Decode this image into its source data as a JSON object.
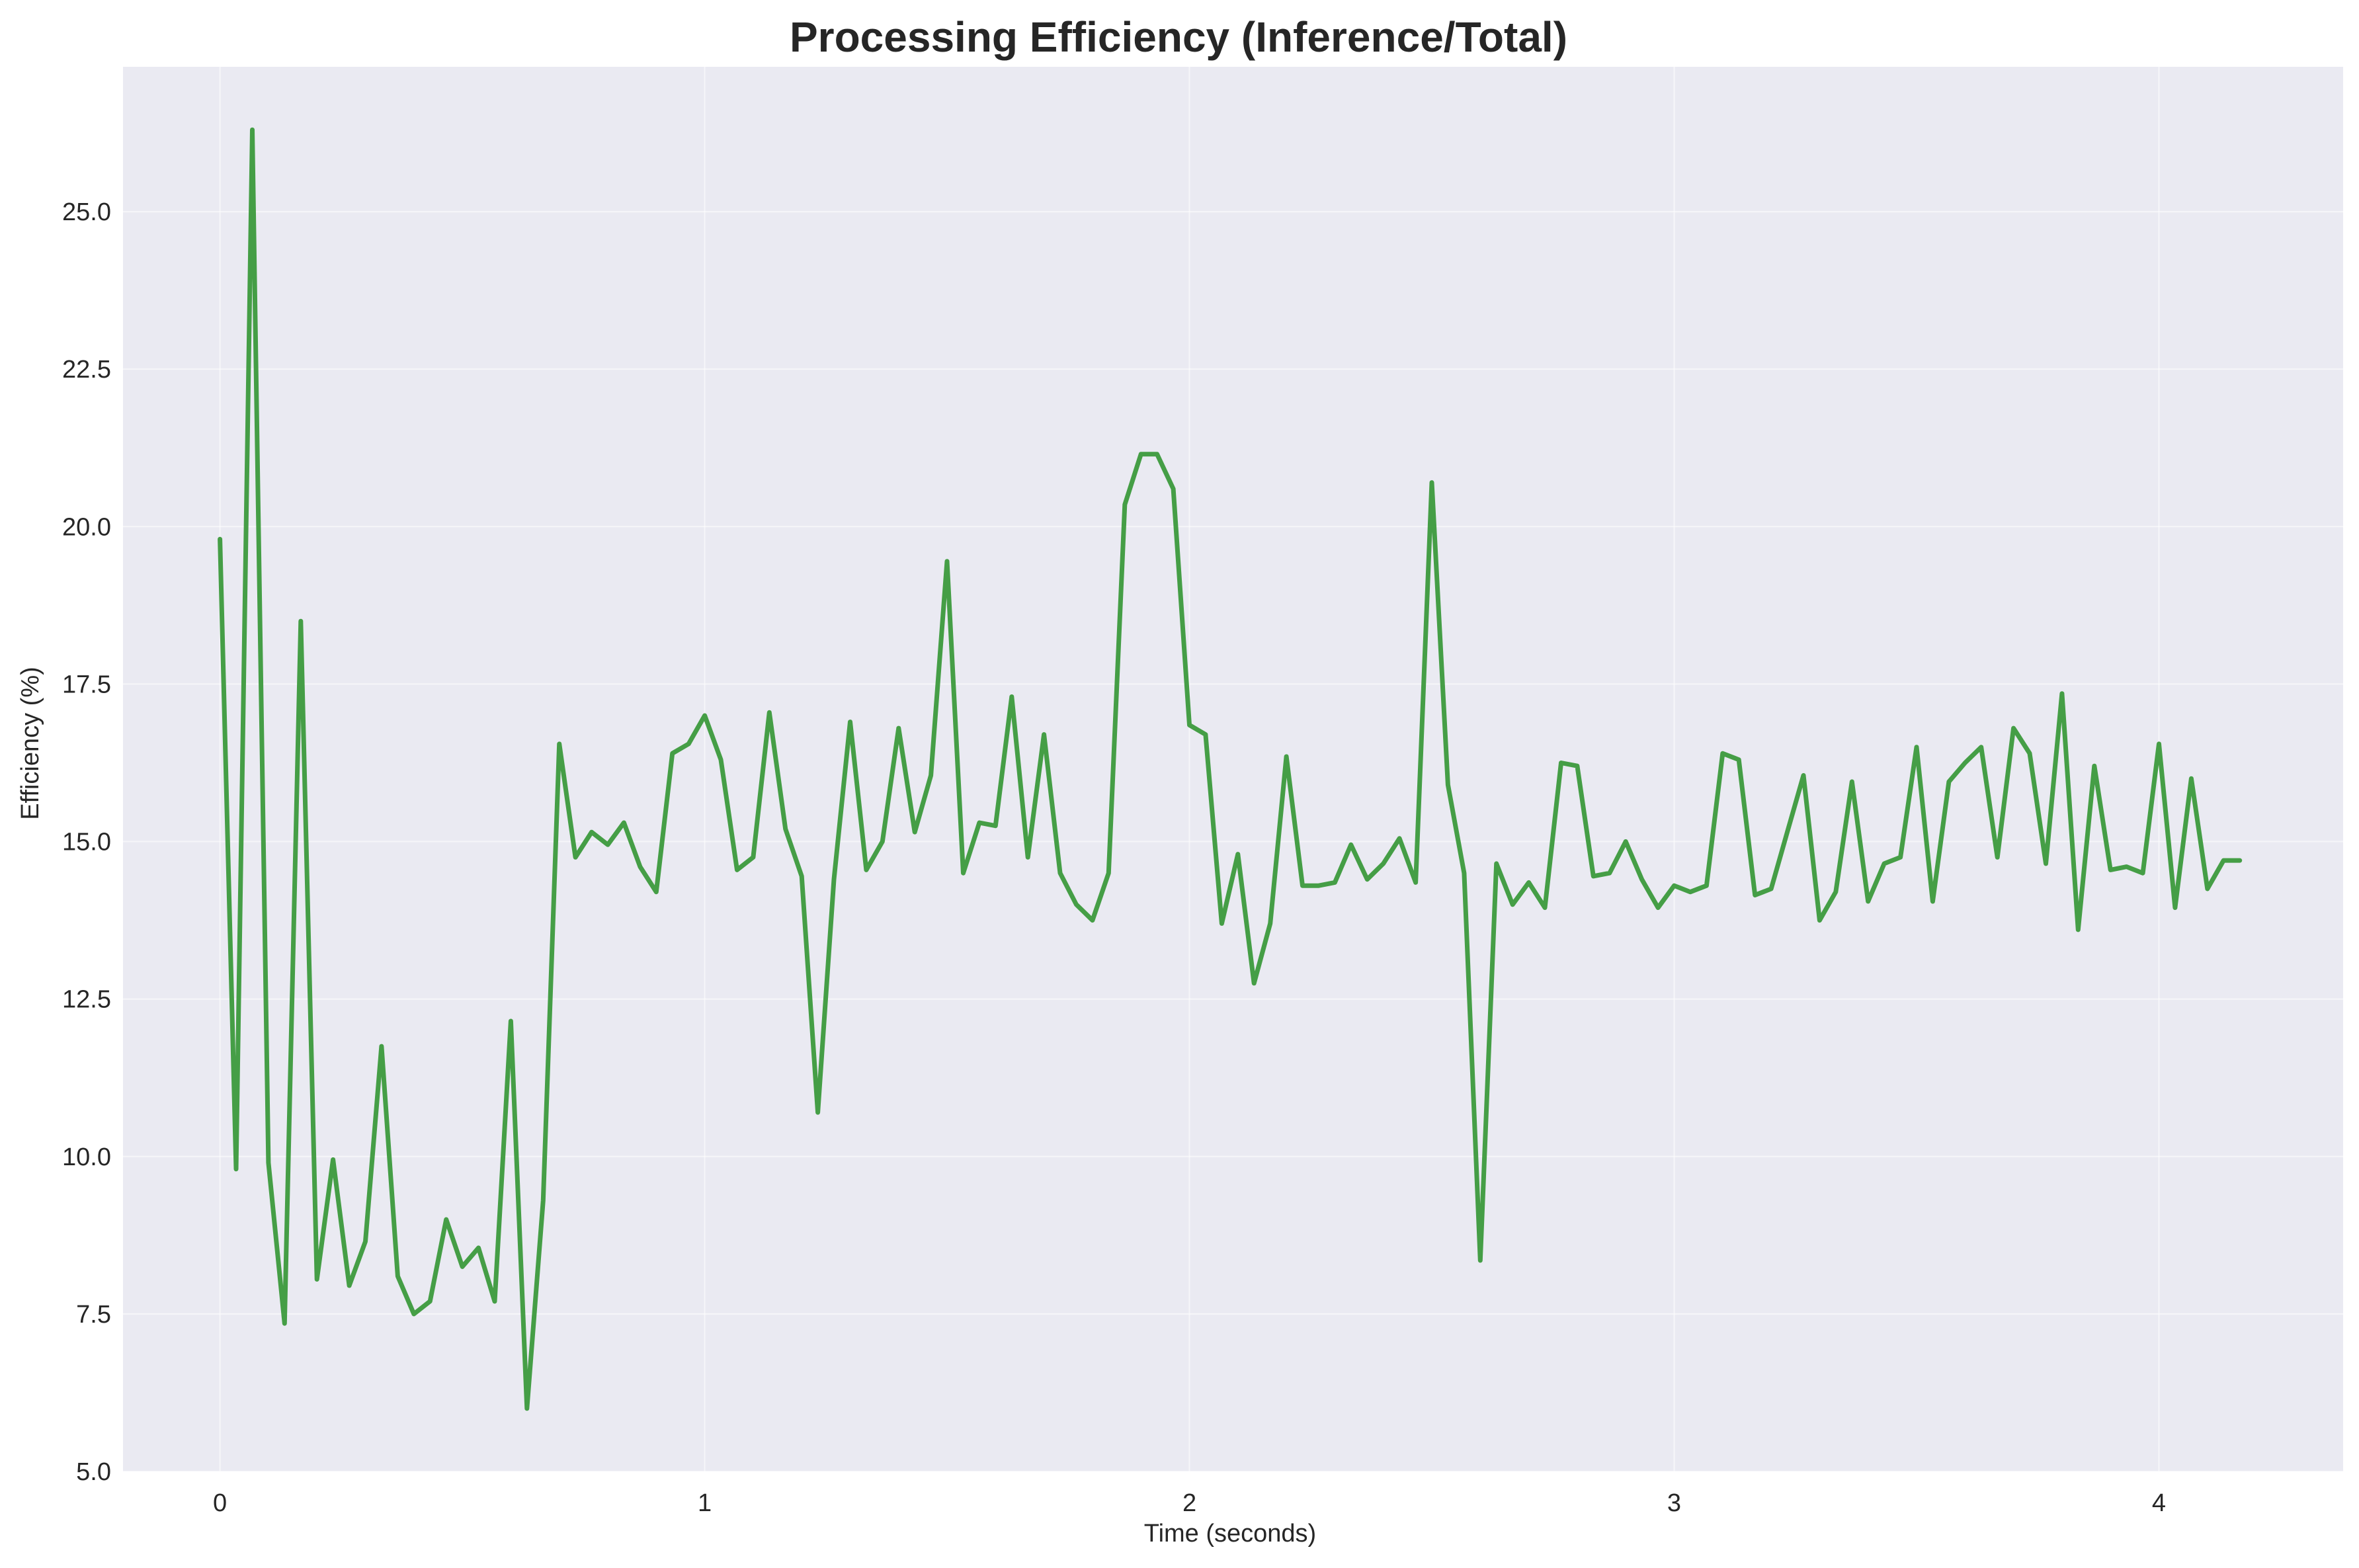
{
  "chart_data": {
    "type": "line",
    "title": "Processing Efficiency (Inference/Total)",
    "xlabel": "Time (seconds)",
    "ylabel": "Efficiency (%)",
    "xlim": [
      -0.2,
      4.38
    ],
    "ylim": [
      5.0,
      27.3
    ],
    "xticks": [
      0,
      1,
      2,
      3,
      4
    ],
    "xtick_labels": [
      "0",
      "1",
      "2",
      "3",
      "4"
    ],
    "yticks": [
      5.0,
      7.5,
      10.0,
      12.5,
      15.0,
      17.5,
      20.0,
      22.5,
      25.0
    ],
    "ytick_labels": [
      "5.0",
      "7.5",
      "10.0",
      "12.5",
      "15.0",
      "17.5",
      "20.0",
      "22.5",
      "25.0"
    ],
    "grid": true,
    "legend": "none",
    "colors": {
      "line": "#3c9a3c",
      "plot_bg": "#eaeaf2",
      "grid": "#ffffff",
      "text": "#262626"
    },
    "series": [
      {
        "x": [
          0.0,
          0.0333,
          0.0667,
          0.1,
          0.1333,
          0.1667,
          0.2,
          0.2333,
          0.2667,
          0.3,
          0.3333,
          0.3667,
          0.4,
          0.4333,
          0.4667,
          0.5,
          0.5333,
          0.5667,
          0.6,
          0.6333,
          0.6667,
          0.7,
          0.7333,
          0.7667,
          0.8,
          0.8333,
          0.8667,
          0.9,
          0.9333,
          0.9667,
          1.0,
          1.0333,
          1.0667,
          1.1,
          1.1333,
          1.1667,
          1.2,
          1.2333,
          1.2667,
          1.3,
          1.3333,
          1.3667,
          1.4,
          1.4333,
          1.4667,
          1.5,
          1.5333,
          1.5667,
          1.6,
          1.6333,
          1.6667,
          1.7,
          1.7333,
          1.7667,
          1.8,
          1.8333,
          1.8667,
          1.9,
          1.9333,
          1.9667,
          2.0,
          2.0333,
          2.0667,
          2.1,
          2.1333,
          2.1667,
          2.2,
          2.2333,
          2.2667,
          2.3,
          2.3333,
          2.3667,
          2.4,
          2.4333,
          2.4667,
          2.5,
          2.5333,
          2.5667,
          2.6,
          2.6333,
          2.6667,
          2.7,
          2.7333,
          2.7667,
          2.8,
          2.8333,
          2.8667,
          2.9,
          2.9333,
          2.9667,
          3.0,
          3.0333,
          3.0667,
          3.1,
          3.1333,
          3.1667,
          3.2,
          3.2333,
          3.2667,
          3.3,
          3.3333,
          3.3667,
          3.4,
          3.4333,
          3.4667,
          3.5,
          3.5333,
          3.5667,
          3.6,
          3.6333,
          3.6667,
          3.7,
          3.7333,
          3.7667,
          3.8,
          3.8333,
          3.8667,
          3.9,
          3.9333,
          3.9667,
          4.0,
          4.0333,
          4.0667,
          4.1,
          4.1333,
          4.1667
        ],
        "y": [
          19.8,
          9.8,
          26.3,
          9.9,
          7.35,
          18.5,
          8.05,
          9.95,
          7.95,
          8.65,
          11.75,
          8.1,
          7.5,
          7.7,
          9.0,
          8.25,
          8.55,
          7.7,
          12.15,
          6.0,
          9.3,
          16.55,
          14.75,
          15.15,
          14.95,
          15.3,
          14.6,
          14.2,
          16.4,
          16.55,
          17.0,
          16.3,
          14.55,
          14.75,
          17.05,
          15.2,
          14.45,
          10.7,
          14.4,
          16.9,
          14.55,
          15.0,
          16.8,
          15.15,
          16.05,
          19.45,
          14.5,
          15.3,
          15.25,
          17.3,
          14.75,
          16.7,
          14.5,
          14.0,
          13.75,
          14.5,
          20.35,
          21.15,
          21.15,
          20.6,
          16.85,
          16.7,
          13.7,
          14.8,
          12.75,
          13.7,
          16.35,
          14.3,
          14.3,
          14.35,
          14.95,
          14.4,
          14.65,
          15.05,
          14.35,
          20.7,
          15.9,
          14.5,
          8.35,
          14.65,
          14.0,
          14.35,
          13.95,
          16.25,
          16.2,
          14.45,
          14.5,
          15.0,
          14.4,
          13.95,
          14.3,
          14.2,
          14.3,
          16.4,
          16.3,
          14.15,
          14.25,
          15.15,
          16.05,
          13.75,
          14.2,
          15.95,
          14.05,
          14.65,
          14.75,
          16.5,
          14.05,
          15.95,
          16.25,
          16.5,
          14.75,
          16.8,
          16.4,
          14.65,
          17.35,
          13.6,
          16.2,
          14.55,
          14.6,
          14.5,
          16.55,
          13.95,
          16.0,
          14.25,
          14.7,
          14.7
        ]
      }
    ]
  }
}
